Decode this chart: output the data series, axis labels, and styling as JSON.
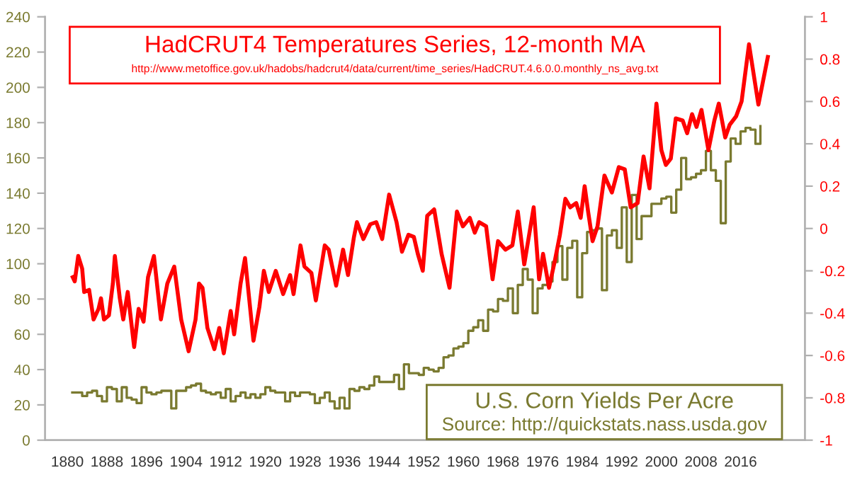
{
  "chart_data": {
    "type": "line",
    "xlim": [
      1875.5,
      2029
    ],
    "xticks": [
      1880,
      1888,
      1896,
      1904,
      1912,
      1920,
      1928,
      1936,
      1944,
      1952,
      1960,
      1968,
      1976,
      1984,
      1992,
      2000,
      2008,
      2016
    ],
    "ylim": [
      0,
      240
    ],
    "yticks": [
      0,
      20,
      40,
      60,
      80,
      100,
      120,
      140,
      160,
      180,
      200,
      220,
      240
    ],
    "y2lim": [
      -1,
      1
    ],
    "y2ticks": [
      -1,
      -0.8,
      -0.6,
      -0.4,
      -0.2,
      0,
      0.2,
      0.4,
      0.6,
      0.8,
      1
    ],
    "grid": false,
    "legend": false,
    "annotations": [
      "http://www.metoffice.gov.uk/hadobs/hadcrut4/data/current/time_series/HadCRUT.4.6.0.0.monthly_ns_avg.txt",
      "Source: http://quickstats.nass.usda.gov"
    ],
    "series": [
      {
        "name": "HadCRUT4 Temperatures Series, 12-month MA",
        "axis": "y2",
        "color": "#ff0000",
        "x": [
          1881.1,
          1881.5,
          1882.2,
          1883.0,
          1883.4,
          1884.4,
          1885.3,
          1886.3,
          1886.8,
          1887.4,
          1888.4,
          1889.2,
          1889.6,
          1890.6,
          1891.3,
          1892.2,
          1893.5,
          1894.4,
          1895.4,
          1896.3,
          1897.5,
          1898.9,
          1900.2,
          1901.6,
          1903.0,
          1904.5,
          1905.9,
          1906.6,
          1907.3,
          1908.3,
          1909.7,
          1910.7,
          1911.6,
          1913.0,
          1913.7,
          1915.0,
          1915.9,
          1917.6,
          1918.8,
          1919.7,
          1920.7,
          1922.1,
          1923.6,
          1925.0,
          1925.7,
          1927.1,
          1927.9,
          1929.3,
          1930.2,
          1932.0,
          1932.8,
          1934.3,
          1935.7,
          1936.7,
          1937.9,
          1938.5,
          1939.8,
          1941.2,
          1942.4,
          1943.6,
          1945.0,
          1946.5,
          1947.6,
          1948.9,
          1950.0,
          1950.8,
          1951.8,
          1952.7,
          1954.1,
          1955.6,
          1957.2,
          1958.7,
          1959.9,
          1961.3,
          1962.3,
          1963.2,
          1964.6,
          1965.9,
          1967.0,
          1968.5,
          1969.9,
          1971.0,
          1972.3,
          1974.2,
          1975.3,
          1976.1,
          1977.3,
          1978.5,
          1979.5,
          1980.6,
          1981.6,
          1982.8,
          1983.7,
          1984.5,
          1985.2,
          1986.1,
          1987.1,
          1988.5,
          1990.0,
          1991.4,
          1992.6,
          1993.8,
          1995.2,
          1996.4,
          1997.6,
          1999.0,
          2000.0,
          2000.9,
          2001.9,
          2002.9,
          2004.3,
          2005.2,
          2006.2,
          2007.1,
          2008.1,
          2009.5,
          2010.7,
          2011.6,
          2012.9,
          2013.8,
          2015.1,
          2016.2,
          2017.7,
          2019.6,
          2021.5
        ],
        "values": [
          -0.23,
          -0.25,
          -0.13,
          -0.19,
          -0.3,
          -0.29,
          -0.43,
          -0.38,
          -0.33,
          -0.43,
          -0.41,
          -0.26,
          -0.13,
          -0.33,
          -0.43,
          -0.3,
          -0.56,
          -0.38,
          -0.44,
          -0.23,
          -0.13,
          -0.43,
          -0.26,
          -0.18,
          -0.43,
          -0.58,
          -0.43,
          -0.26,
          -0.28,
          -0.47,
          -0.57,
          -0.47,
          -0.59,
          -0.39,
          -0.5,
          -0.26,
          -0.14,
          -0.53,
          -0.37,
          -0.2,
          -0.3,
          -0.2,
          -0.31,
          -0.22,
          -0.31,
          -0.08,
          -0.18,
          -0.21,
          -0.34,
          -0.08,
          -0.1,
          -0.27,
          -0.1,
          -0.22,
          -0.04,
          0.03,
          -0.05,
          0.02,
          0.03,
          -0.05,
          0.16,
          0.03,
          -0.11,
          -0.03,
          -0.04,
          -0.12,
          -0.2,
          0.06,
          0.09,
          -0.12,
          -0.28,
          0.08,
          0.01,
          0.05,
          -0.02,
          0.03,
          0.01,
          -0.24,
          -0.06,
          -0.1,
          -0.08,
          0.08,
          -0.17,
          0.1,
          -0.24,
          -0.12,
          -0.28,
          -0.15,
          -0.03,
          0.14,
          0.1,
          0.12,
          0.05,
          0.2,
          0.08,
          -0.06,
          0.01,
          0.25,
          0.17,
          0.29,
          0.28,
          0.1,
          0.12,
          0.34,
          0.19,
          0.59,
          0.37,
          0.3,
          0.33,
          0.52,
          0.51,
          0.45,
          0.54,
          0.48,
          0.56,
          0.37,
          0.51,
          0.59,
          0.43,
          0.49,
          0.53,
          0.6,
          0.87,
          0.585,
          0.81
        ]
      },
      {
        "name": "U.S. Corn Yields Per Acre",
        "type": "step",
        "color": "#7a7a30",
        "x": [
          1881,
          1882,
          1883,
          1884,
          1885,
          1886,
          1887,
          1888,
          1889,
          1890,
          1891,
          1892,
          1893,
          1894,
          1895,
          1896,
          1897,
          1898,
          1899,
          1900,
          1901,
          1902,
          1903,
          1904,
          1905,
          1906,
          1907,
          1908,
          1909,
          1910,
          1911,
          1912,
          1913,
          1914,
          1915,
          1916,
          1917,
          1918,
          1919,
          1920,
          1921,
          1922,
          1923,
          1924,
          1925,
          1926,
          1927,
          1928,
          1929,
          1930,
          1931,
          1932,
          1933,
          1934,
          1935,
          1936,
          1937,
          1938,
          1939,
          1940,
          1941,
          1942,
          1943,
          1944,
          1945,
          1946,
          1947,
          1948,
          1949,
          1950,
          1951,
          1952,
          1953,
          1954,
          1955,
          1956,
          1957,
          1958,
          1959,
          1960,
          1961,
          1962,
          1963,
          1964,
          1965,
          1966,
          1967,
          1968,
          1969,
          1970,
          1971,
          1972,
          1973,
          1974,
          1975,
          1976,
          1977,
          1978,
          1979,
          1980,
          1981,
          1982,
          1983,
          1984,
          1985,
          1986,
          1987,
          1988,
          1989,
          1990,
          1991,
          1992,
          1993,
          1994,
          1995,
          1996,
          1997,
          1998,
          1999,
          2000,
          2001,
          2002,
          2003,
          2004,
          2005,
          2006,
          2007,
          2008,
          2009,
          2010,
          2011,
          2012,
          2013,
          2014,
          2015,
          2016,
          2017,
          2018,
          2019,
          2020
        ],
        "values": [
          27,
          27,
          25,
          27,
          28,
          25,
          22,
          30,
          29,
          22,
          30,
          24,
          23,
          21,
          30,
          27,
          26,
          27,
          28,
          28,
          18,
          28,
          28,
          30,
          31,
          32,
          28,
          27,
          26,
          27,
          24,
          29,
          22,
          25,
          27,
          24,
          26,
          24,
          26,
          30,
          28,
          27,
          27,
          22,
          27,
          25,
          27,
          27,
          26,
          21,
          24,
          27,
          22,
          18,
          24,
          18,
          29,
          28,
          30,
          29,
          31,
          36,
          33,
          33,
          33,
          37,
          29,
          43,
          38,
          38,
          37,
          41,
          40,
          39,
          41,
          47,
          48,
          52,
          53,
          55,
          62,
          64,
          68,
          62,
          74,
          73,
          80,
          79,
          86,
          72,
          88,
          97,
          91,
          72,
          86,
          88,
          90,
          101,
          110,
          91,
          109,
          113,
          81,
          106,
          118,
          119,
          120,
          85,
          116,
          119,
          109,
          132,
          101,
          139,
          114,
          127,
          127,
          134,
          134,
          137,
          138,
          129,
          142,
          160,
          148,
          149,
          151,
          153,
          164,
          153,
          147,
          123,
          158,
          171,
          168,
          175,
          177,
          176,
          168,
          178
        ]
      }
    ]
  }
}
